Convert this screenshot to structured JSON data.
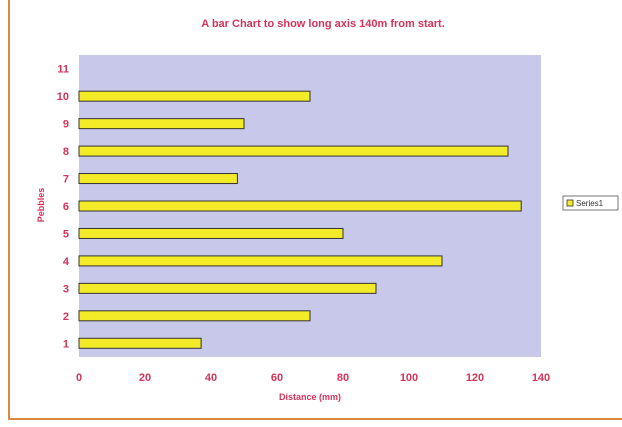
{
  "chart_data": {
    "type": "bar",
    "orientation": "horizontal",
    "title": "A bar Chart to show long axis 140m from start.",
    "xlabel": "Distance (mm)",
    "ylabel": "Pebbles",
    "categories": [
      "1",
      "2",
      "3",
      "4",
      "5",
      "6",
      "7",
      "8",
      "9",
      "10",
      "11"
    ],
    "series": [
      {
        "name": "Series1",
        "values": [
          37,
          70,
          90,
          110,
          80,
          134,
          48,
          130,
          50,
          70,
          null
        ]
      }
    ],
    "xlim": [
      0,
      140
    ],
    "xticks": [
      "0",
      "20",
      "40",
      "60",
      "80",
      "100",
      "120",
      "140"
    ],
    "grid": false,
    "legend": "right",
    "colors": {
      "plot_bg": "#c8c8ea",
      "bar_fill": "#f3ea28",
      "bar_stroke": "#333333",
      "text": "#d5335a",
      "frame": "#d98a40"
    }
  }
}
